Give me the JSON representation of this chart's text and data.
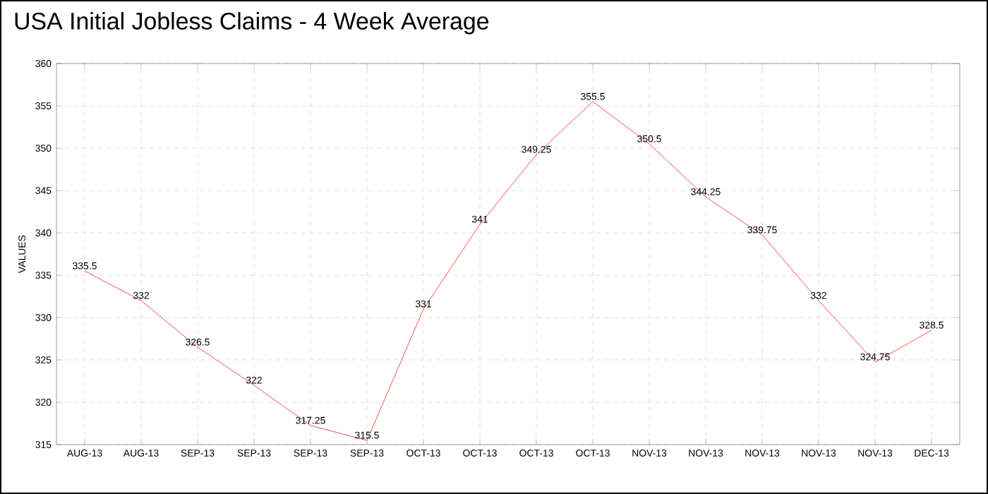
{
  "chart_data": {
    "type": "line",
    "title": "USA Initial Jobless Claims - 4 Week Average",
    "ylabel": "VALUES",
    "categories": [
      "AUG-13",
      "AUG-13",
      "SEP-13",
      "SEP-13",
      "SEP-13",
      "SEP-13",
      "OCT-13",
      "OCT-13",
      "OCT-13",
      "OCT-13",
      "NOV-13",
      "NOV-13",
      "NOV-13",
      "NOV-13",
      "NOV-13",
      "DEC-13"
    ],
    "series": [
      {
        "color": "#ff2020",
        "values": [
          335.5,
          332,
          326.5,
          322,
          317.25,
          315.5,
          331,
          341,
          349.25,
          355.5,
          350.5,
          344.25,
          339.75,
          332,
          324.75,
          328.5
        ]
      }
    ],
    "ylim": [
      315,
      360
    ],
    "yticks": [
      315,
      320,
      325,
      330,
      335,
      340,
      345,
      350,
      355,
      360
    ],
    "grid": true,
    "data_labels": true,
    "marker": "none",
    "line_style": "solid"
  }
}
